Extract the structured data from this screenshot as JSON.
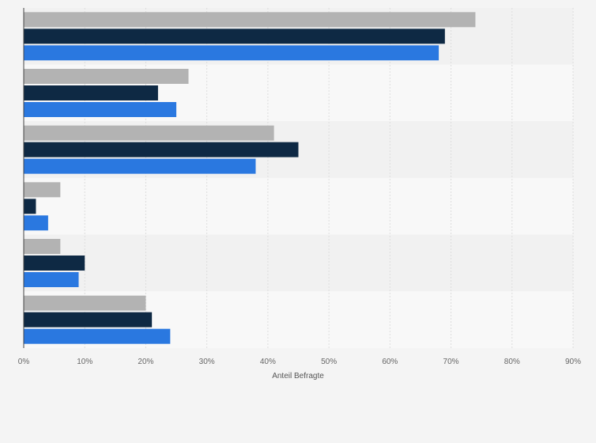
{
  "chart_data": {
    "type": "bar",
    "orientation": "horizontal",
    "title": "",
    "xlabel": "Anteil Befragte",
    "ylabel": "",
    "xlim": [
      0,
      90
    ],
    "x_ticks": [
      0,
      10,
      20,
      30,
      40,
      50,
      60,
      70,
      80,
      90
    ],
    "tick_suffix": "%",
    "grid": true,
    "legend": "none",
    "categories": [
      "",
      "",
      "",
      "",
      "",
      ""
    ],
    "series": [
      {
        "color": "#b3b3b3",
        "values": [
          74,
          27,
          41,
          6,
          6,
          20
        ]
      },
      {
        "color": "#0e2944",
        "values": [
          69,
          22,
          45,
          2,
          10,
          21
        ]
      },
      {
        "color": "#2a78e0",
        "values": [
          68,
          25,
          38,
          4,
          9,
          24
        ]
      }
    ]
  },
  "colors": {
    "background": "#f4f4f4",
    "band_odd": "#f1f1f1",
    "band_even": "#f8f8f8",
    "gridline": "#dddddd",
    "axis": "#444444"
  }
}
